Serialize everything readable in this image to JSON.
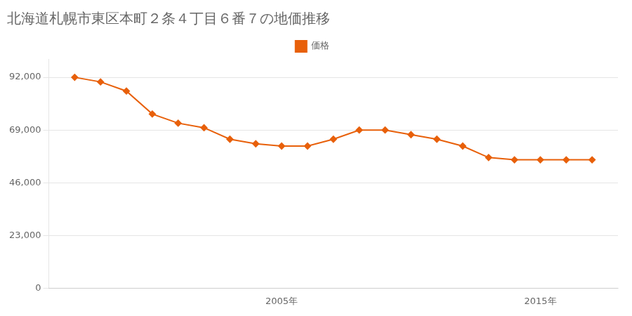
{
  "chart_data": {
    "type": "line",
    "title": "北海道札幌市東区本町２条４丁目６番７の地価推移",
    "x": [
      1997,
      1998,
      1999,
      2000,
      2001,
      2002,
      2003,
      2004,
      2005,
      2006,
      2007,
      2008,
      2009,
      2010,
      2011,
      2012,
      2013,
      2014,
      2015,
      2016,
      2017
    ],
    "series": [
      {
        "name": "価格",
        "color": "#e8600a",
        "marker": "diamond",
        "values": [
          92000,
          90000,
          86000,
          76000,
          72000,
          70000,
          65000,
          63000,
          62000,
          62000,
          65000,
          69000,
          69000,
          67000,
          65000,
          62000,
          57000,
          56000,
          56000,
          56000,
          56000
        ]
      }
    ],
    "xlim": [
      1996,
      2018
    ],
    "xticks": [
      {
        "value": 2005,
        "label": "2005年"
      },
      {
        "value": 2015,
        "label": "2015年"
      }
    ],
    "ylim": [
      0,
      100000
    ],
    "yticks": [
      0,
      {
        "value": 23000,
        "label": "23,000"
      },
      {
        "value": 46000,
        "label": "46,000"
      },
      {
        "value": 69000,
        "label": "69,000"
      },
      {
        "value": 92000,
        "label": "92,000"
      }
    ],
    "grid": "y",
    "legend": "top"
  }
}
